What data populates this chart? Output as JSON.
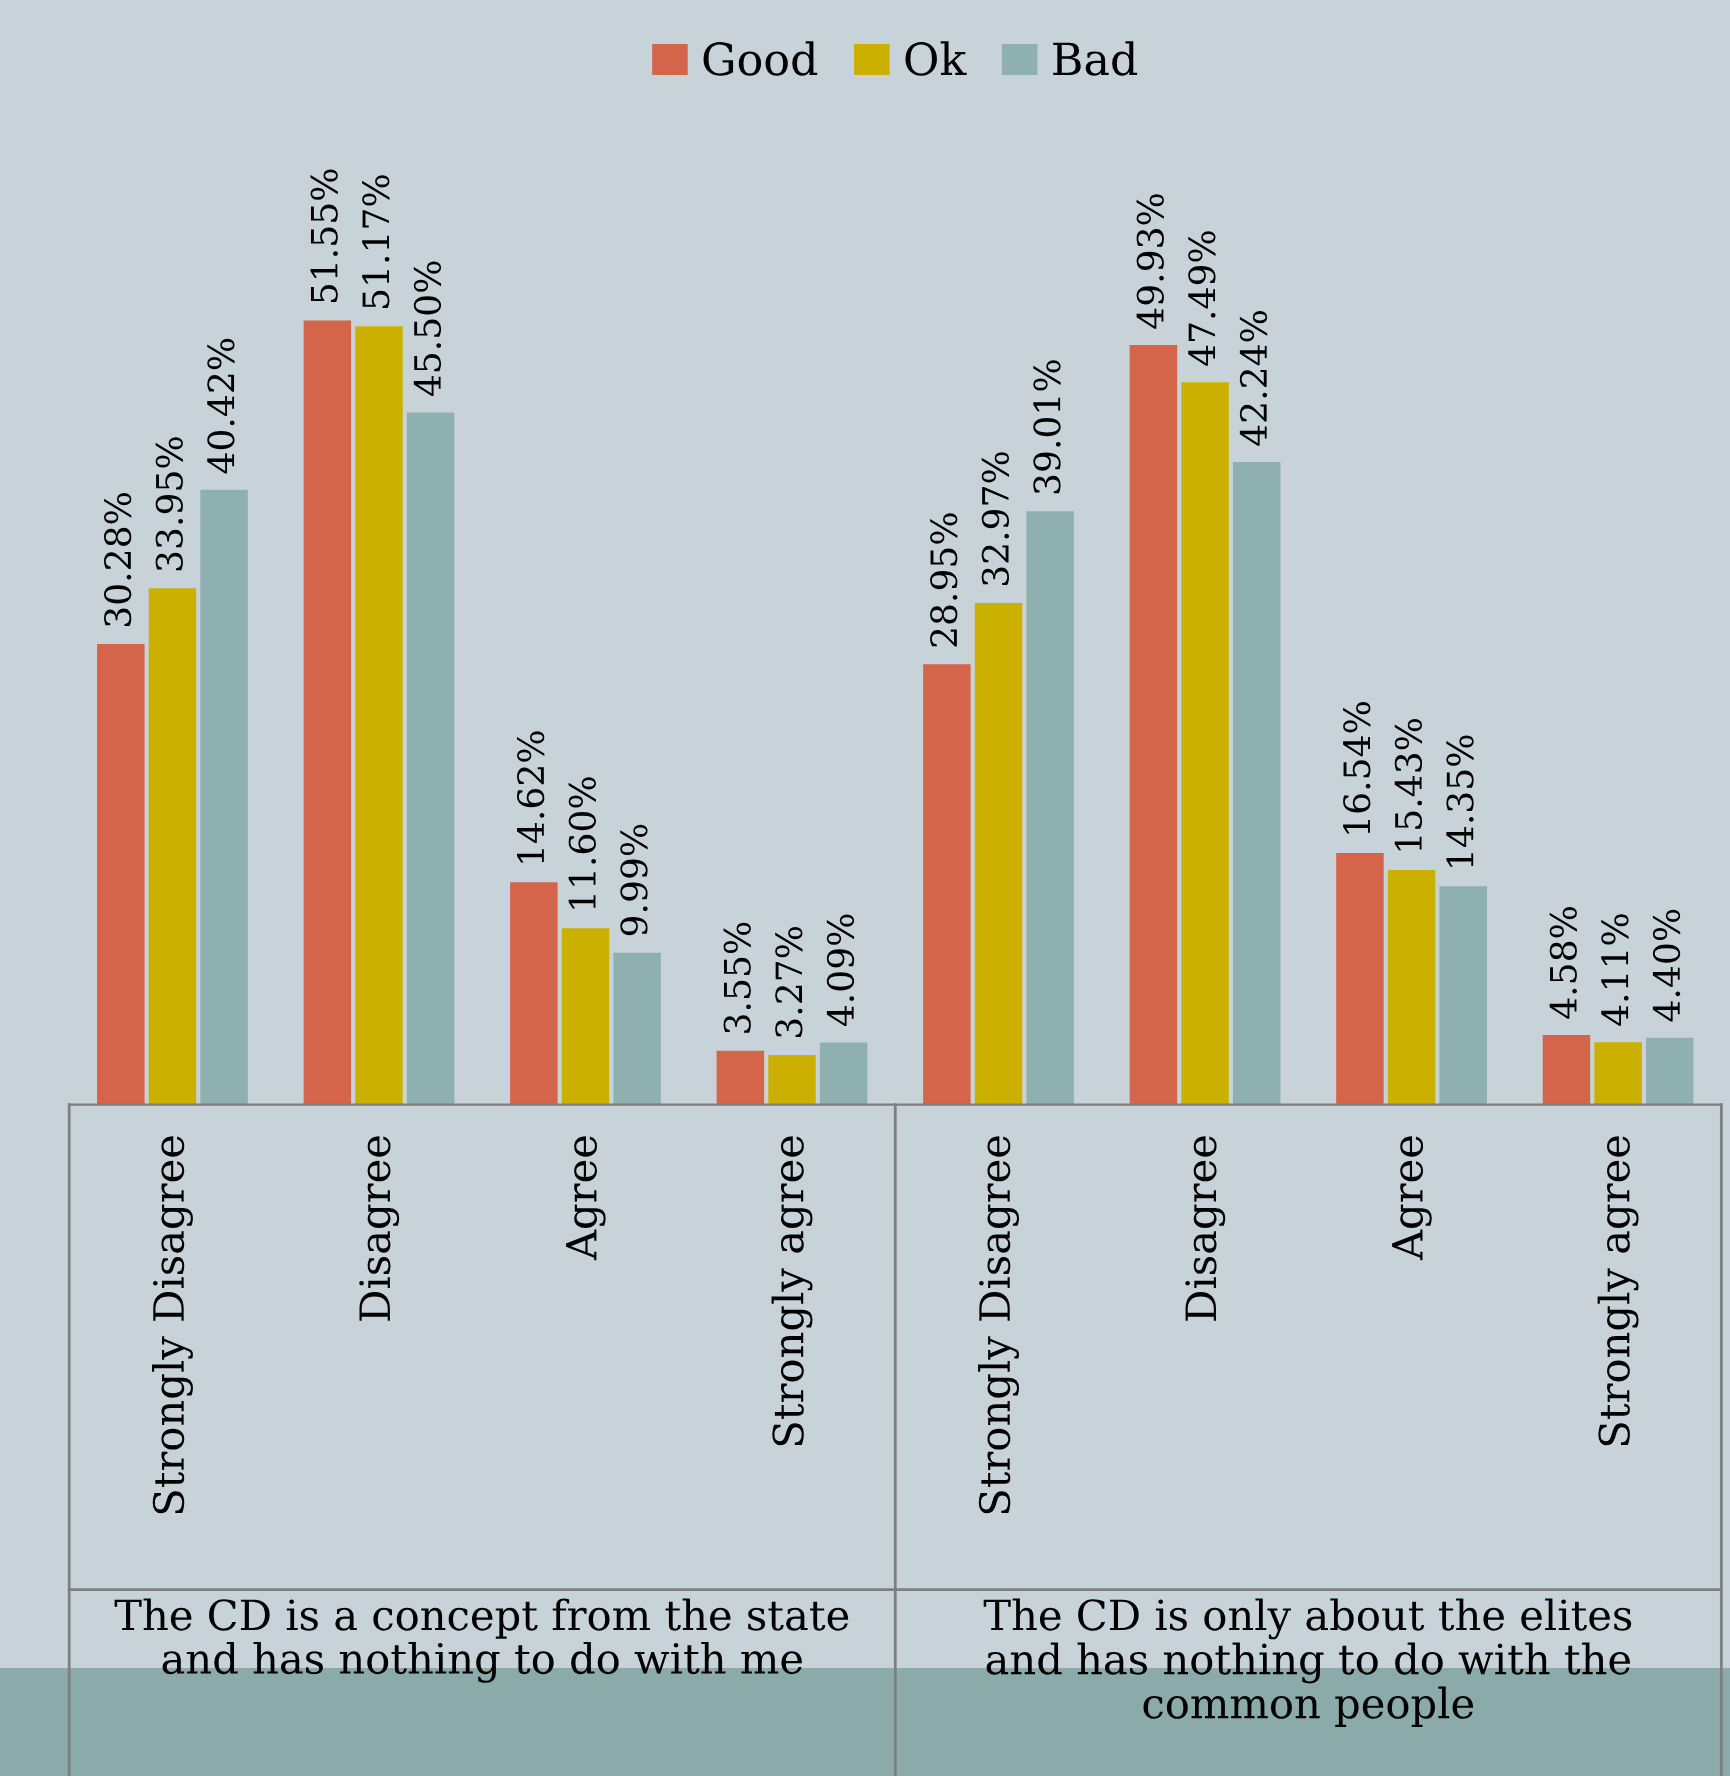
{
  "chart_data": {
    "type": "bar",
    "categories": [
      "Strongly Disagree",
      "Disagree",
      "Agree",
      "Strongly agree",
      "Strongly Disagree",
      "Disagree",
      "Agree",
      "Strongly agree"
    ],
    "series": [
      {
        "name": "Good",
        "color": "#d4654a",
        "values": [
          30.28,
          51.55,
          14.62,
          3.55,
          28.95,
          49.93,
          16.54,
          4.58
        ],
        "value_labels": [
          "30.28%",
          "51.55%",
          "14.62%",
          "3.55%",
          "28.95%",
          "49.93%",
          "16.54%",
          "4.58%"
        ]
      },
      {
        "name": "Ok",
        "color": "#ccb000",
        "values": [
          33.95,
          51.17,
          11.6,
          3.27,
          32.97,
          47.49,
          15.43,
          4.11
        ],
        "value_labels": [
          "33.95%",
          "51.17%",
          "11.60%",
          "3.27%",
          "32.97%",
          "47.49%",
          "15.43%",
          "4.11%"
        ]
      },
      {
        "name": "Bad",
        "color": "#8fb0b0",
        "values": [
          40.42,
          45.5,
          9.99,
          4.09,
          39.01,
          42.24,
          14.35,
          4.4
        ],
        "value_labels": [
          "40.42%",
          "45.50%",
          "9.99%",
          "4.09%",
          "39.01%",
          "42.24%",
          "14.35%",
          "4.40%"
        ]
      }
    ],
    "annotations": [
      "The CD is a concept from the state\nand has nothing to do with me",
      "The CD is only about the elites\nand has nothing to do with the\ncommon people"
    ],
    "legend": "top"
  }
}
